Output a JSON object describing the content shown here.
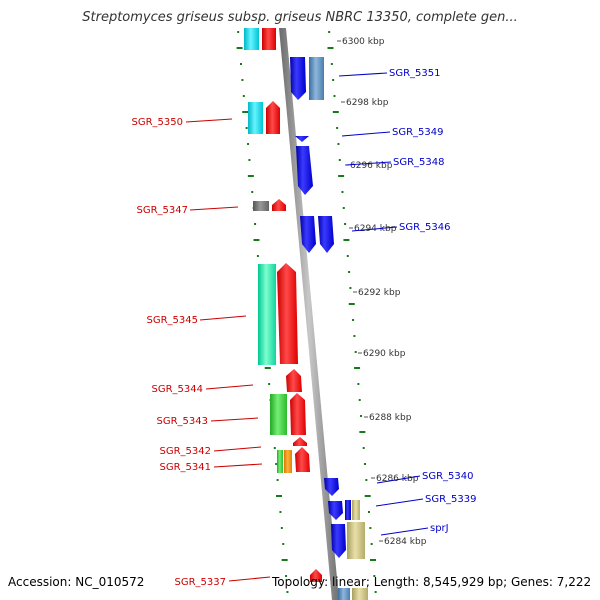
{
  "title": "Streptomyces griseus subsp. griseus NBRC 13350, complete gen...",
  "footer": {
    "accession": "Accession: NC_010572",
    "topology": "Topology: linear; Length: 8,545,929 bp; Genes: 7,222"
  },
  "colors": {
    "left_label": "#cc0000",
    "right_label": "#0000cc",
    "backbone": "#909090",
    "tick": "#1a7a1a"
  },
  "kbp_labels": [
    "6300 kbp",
    "6298 kbp",
    "6296 kbp",
    "6294 kbp",
    "6292 kbp",
    "6290 kbp",
    "6288 kbp",
    "6286 kbp",
    "6284 kbp"
  ],
  "genes_left": [
    "SGR_5350",
    "SGR_5347",
    "SGR_5345",
    "SGR_5344",
    "SGR_5343",
    "SGR_5342",
    "SGR_5341",
    "SGR_5337"
  ],
  "genes_right": [
    "SGR_5351",
    "SGR_5349",
    "SGR_5348",
    "SGR_5346",
    "SGR_5340",
    "SGR_5339",
    "sprJ"
  ]
}
